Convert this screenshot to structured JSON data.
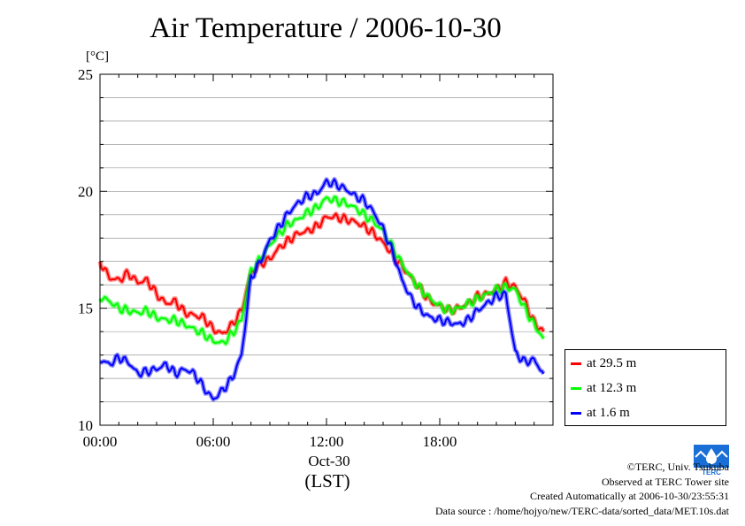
{
  "chart_data": {
    "type": "line",
    "title": "Air Temperature / 2006-10-30",
    "ylabel": "[°C]",
    "xlabel": "(LST)",
    "x_date_label": "Oct-30",
    "ylim": [
      10,
      25
    ],
    "xlim": [
      0,
      24
    ],
    "y_ticks": [
      "10",
      "15",
      "20",
      "25"
    ],
    "x_ticks": [
      {
        "hour": 0,
        "label": "00:00"
      },
      {
        "hour": 6,
        "label": "06:00"
      },
      {
        "hour": 12,
        "label": "12:00"
      },
      {
        "hour": 18,
        "label": "18:00"
      }
    ],
    "grid": true,
    "legend_position": "right",
    "x": [
      0,
      0.5,
      1,
      1.5,
      2,
      2.5,
      3,
      3.5,
      4,
      4.5,
      5,
      5.5,
      6,
      6.5,
      7,
      7.5,
      8,
      8.5,
      9,
      9.5,
      10,
      10.5,
      11,
      11.5,
      12,
      12.5,
      13,
      13.5,
      14,
      14.5,
      15,
      15.5,
      16,
      16.5,
      17,
      17.5,
      18,
      18.5,
      19,
      19.5,
      20,
      20.5,
      21,
      21.5,
      22,
      22.5,
      23,
      23.5
    ],
    "series": [
      {
        "name": "at 29.5 m",
        "color": "#ff0000",
        "values": [
          17.0,
          16.3,
          16.2,
          16.5,
          16.1,
          16.2,
          15.6,
          15.2,
          15.3,
          14.8,
          14.7,
          14.6,
          14.1,
          13.9,
          14.3,
          14.9,
          16.5,
          16.9,
          17.1,
          17.6,
          17.9,
          18.2,
          18.3,
          18.5,
          18.9,
          18.9,
          18.8,
          18.7,
          18.5,
          18.2,
          17.8,
          17.3,
          16.8,
          16.3,
          15.8,
          15.3,
          15.1,
          14.9,
          15.0,
          15.2,
          15.5,
          15.6,
          15.8,
          16.1,
          15.9,
          15.3,
          14.4,
          14.0
        ]
      },
      {
        "name": "at 12.3 m",
        "color": "#00ff00",
        "values": [
          15.5,
          15.3,
          15.0,
          14.9,
          14.8,
          14.9,
          14.6,
          14.5,
          14.5,
          14.3,
          14.1,
          13.9,
          13.6,
          13.5,
          13.9,
          14.5,
          16.6,
          17.1,
          17.7,
          18.2,
          18.6,
          18.8,
          19.1,
          19.3,
          19.7,
          19.6,
          19.5,
          19.3,
          19.0,
          18.7,
          18.3,
          17.6,
          16.9,
          16.3,
          15.8,
          15.4,
          15.1,
          14.9,
          15.0,
          15.2,
          15.4,
          15.6,
          15.8,
          15.9,
          15.8,
          15.0,
          14.3,
          13.7
        ]
      },
      {
        "name": "at 1.6 m",
        "color": "#0000ff",
        "values": [
          12.8,
          12.6,
          12.9,
          12.7,
          12.2,
          12.3,
          12.4,
          12.6,
          12.2,
          12.4,
          12.2,
          11.6,
          11.1,
          11.5,
          12.0,
          13.0,
          16.3,
          17.0,
          17.9,
          18.5,
          19.1,
          19.5,
          19.8,
          19.9,
          20.4,
          20.3,
          20.1,
          19.8,
          19.6,
          19.1,
          18.4,
          17.4,
          16.2,
          15.4,
          14.9,
          14.6,
          14.5,
          14.4,
          14.3,
          14.5,
          14.9,
          15.2,
          15.5,
          15.6,
          13.1,
          12.7,
          12.8,
          12.2
        ]
      }
    ]
  },
  "credits": {
    "copyright": "©TERC, Univ. Tsukuba",
    "observed": "Observed at TERC Tower site",
    "created": "Created Automatically at 2006-10-30/23:55:31",
    "source": "Data source : /home/hojyo/new/TERC-data/sorted_data/MET.10s.dat"
  },
  "logo": {
    "text": "TERC",
    "icon": "terc-logo-icon",
    "color": "#1a6fd6"
  }
}
